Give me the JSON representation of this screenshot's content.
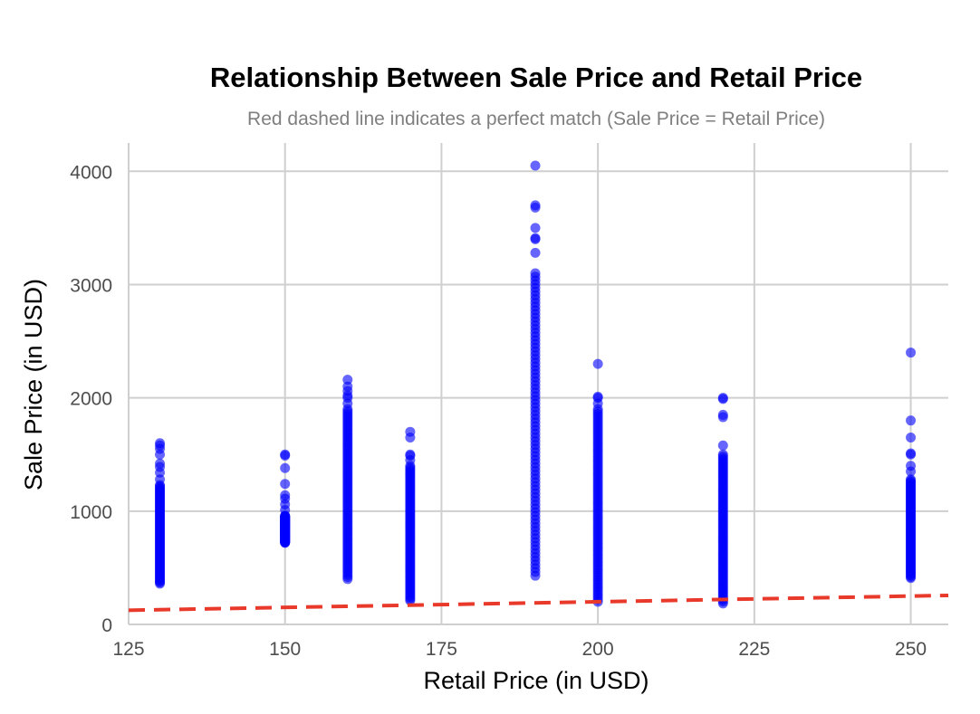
{
  "chart_data": {
    "type": "scatter",
    "title": "Relationship Between Sale Price and Retail Price",
    "subtitle": "Red dashed line indicates a perfect match (Sale Price = Retail Price)",
    "xlabel": "Retail Price (in USD)",
    "ylabel": "Sale Price (in USD)",
    "xlim": [
      125,
      256
    ],
    "ylim": [
      0,
      4250
    ],
    "x_ticks": [
      "125",
      "150",
      "175",
      "200",
      "225",
      "250"
    ],
    "y_ticks": [
      "0",
      "1000",
      "2000",
      "3000",
      "4000"
    ],
    "grid": true,
    "reference_line": {
      "style": "dashed",
      "color": "#e8392b",
      "equation": "y = x"
    },
    "point_color": "#0000ff",
    "point_opacity": 0.6,
    "series": [
      {
        "x": 130,
        "y_range": [
          360,
          1230
        ],
        "outliers": [
          1280,
          1340,
          1390,
          1420,
          1500,
          1550,
          1580,
          1600
        ]
      },
      {
        "x": 150,
        "y_range": [
          720,
          960
        ],
        "outliers": [
          1010,
          1060,
          1110,
          1140,
          1240,
          1380,
          1490,
          1500
        ]
      },
      {
        "x": 160,
        "y_range": [
          400,
          1900
        ],
        "outliers": [
          1950,
          2000,
          2020,
          2060,
          2100,
          2160
        ]
      },
      {
        "x": 170,
        "y_range": [
          210,
          1400
        ],
        "outliers": [
          1450,
          1490,
          1500,
          1650,
          1700
        ]
      },
      {
        "x": 190,
        "y_range": [
          430,
          3070
        ],
        "outliers": [
          3100,
          3280,
          3400,
          3410,
          3500,
          3680,
          3700,
          4050
        ]
      },
      {
        "x": 200,
        "y_range": [
          200,
          1900
        ],
        "outliers": [
          1950,
          2000,
          2010,
          2300
        ]
      },
      {
        "x": 220,
        "y_range": [
          185,
          1500
        ],
        "outliers": [
          1580,
          1830,
          1850,
          1990,
          2000
        ]
      },
      {
        "x": 250,
        "y_range": [
          410,
          1280
        ],
        "outliers": [
          1350,
          1400,
          1500,
          1510,
          1650,
          1800,
          2400
        ]
      }
    ]
  }
}
